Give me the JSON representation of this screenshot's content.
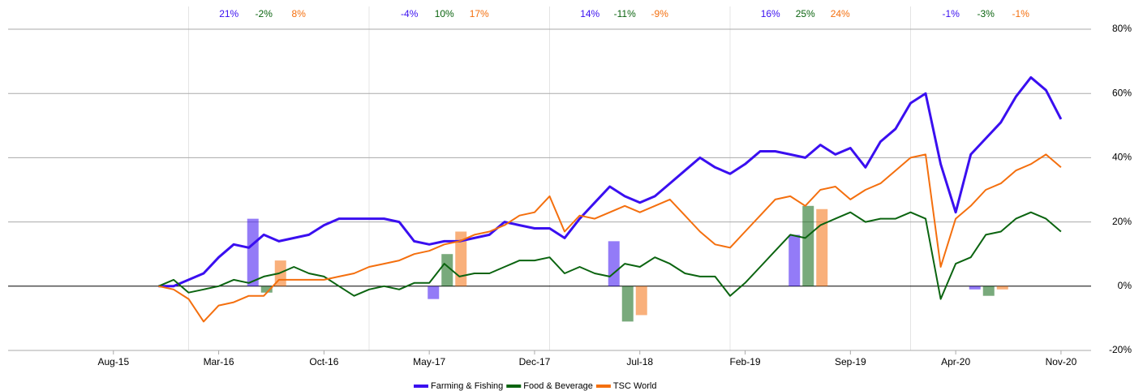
{
  "chart_data": {
    "type": "line",
    "x": [
      "2015-11",
      "2015-12",
      "2016-01",
      "2016-02",
      "2016-03",
      "2016-04",
      "2016-05",
      "2016-06",
      "2016-07",
      "2016-08",
      "2016-09",
      "2016-10",
      "2016-11",
      "2016-12",
      "2017-01",
      "2017-02",
      "2017-03",
      "2017-04",
      "2017-05",
      "2017-06",
      "2017-07",
      "2017-08",
      "2017-09",
      "2017-10",
      "2017-11",
      "2017-12",
      "2018-01",
      "2018-02",
      "2018-03",
      "2018-04",
      "2018-05",
      "2018-06",
      "2018-07",
      "2018-08",
      "2018-09",
      "2018-10",
      "2018-11",
      "2018-12",
      "2019-01",
      "2019-02",
      "2019-03",
      "2019-04",
      "2019-05",
      "2019-06",
      "2019-07",
      "2019-08",
      "2019-09",
      "2019-10",
      "2019-11",
      "2019-12",
      "2020-01",
      "2020-02",
      "2020-03",
      "2020-04",
      "2020-05",
      "2020-06",
      "2020-07",
      "2020-08",
      "2020-09",
      "2020-10",
      "2020-11"
    ],
    "xlim": [
      "2015-01",
      "2021-01"
    ],
    "xticks": [
      {
        "value": "2015-08",
        "label": "Aug-15"
      },
      {
        "value": "2016-03",
        "label": "Mar-16"
      },
      {
        "value": "2016-10",
        "label": "Oct-16"
      },
      {
        "value": "2017-05",
        "label": "May-17"
      },
      {
        "value": "2017-12",
        "label": "Dec-17"
      },
      {
        "value": "2018-07",
        "label": "Jul-18"
      },
      {
        "value": "2019-02",
        "label": "Feb-19"
      },
      {
        "value": "2019-09",
        "label": "Sep-19"
      },
      {
        "value": "2020-04",
        "label": "Apr-20"
      },
      {
        "value": "2020-11",
        "label": "Nov-20"
      }
    ],
    "xgrid": [
      "2016-01",
      "2017-01",
      "2018-01",
      "2019-01",
      "2020-01"
    ],
    "ylim": [
      -20,
      80
    ],
    "yticks": [
      {
        "value": -20,
        "label": "-20%"
      },
      {
        "value": 0,
        "label": "0%"
      },
      {
        "value": 20,
        "label": "20%"
      },
      {
        "value": 40,
        "label": "40%"
      },
      {
        "value": 60,
        "label": "60%"
      },
      {
        "value": 80,
        "label": "80%"
      }
    ],
    "grid": true,
    "legend": "bottom",
    "series": [
      {
        "name": "Farming & Fishing",
        "color": "#3a0ff0",
        "values": [
          0,
          0,
          2,
          4,
          9,
          13,
          12,
          16,
          14,
          15,
          16,
          19,
          21,
          21,
          21,
          21,
          20,
          14,
          13,
          14,
          14,
          15,
          16,
          20,
          19,
          18,
          18,
          15,
          21,
          26,
          31,
          28,
          26,
          28,
          32,
          36,
          40,
          37,
          35,
          38,
          42,
          42,
          41,
          40,
          44,
          41,
          43,
          37,
          45,
          49,
          57,
          60,
          38,
          23,
          41,
          46,
          51,
          59,
          65,
          61,
          52
        ],
        "annual_values": [
          21,
          -4,
          14,
          16,
          -1
        ],
        "annual_value_labels": [
          "21%",
          "-4%",
          "14%",
          "16%",
          "-1%"
        ]
      },
      {
        "name": "Food & Beverage",
        "color": "#0b6410",
        "values": [
          0,
          2,
          -2,
          -1,
          0,
          2,
          1,
          3,
          4,
          6,
          4,
          3,
          0,
          -3,
          -1,
          0,
          -1,
          1,
          1,
          7,
          3,
          4,
          4,
          6,
          8,
          8,
          9,
          4,
          6,
          4,
          3,
          7,
          6,
          9,
          7,
          4,
          3,
          3,
          -3,
          1,
          6,
          11,
          16,
          15,
          19,
          21,
          23,
          20,
          21,
          21,
          23,
          21,
          -4,
          7,
          9,
          16,
          17,
          21,
          23,
          21,
          17
        ],
        "annual_values": [
          -2,
          10,
          -11,
          25,
          -3
        ],
        "annual_value_labels": [
          "-2%",
          "10%",
          "-11%",
          "25%",
          "-3%"
        ]
      },
      {
        "name": "TSC  World",
        "color": "#f46f0e",
        "values": [
          0,
          -1,
          -4,
          -11,
          -6,
          -5,
          -3,
          -3,
          2,
          2,
          2,
          2,
          3,
          4,
          6,
          7,
          8,
          10,
          11,
          13,
          14,
          16,
          17,
          19,
          22,
          23,
          28,
          17,
          22,
          21,
          23,
          25,
          23,
          25,
          27,
          22,
          17,
          13,
          12,
          17,
          22,
          27,
          28,
          25,
          30,
          31,
          27,
          30,
          32,
          36,
          40,
          41,
          6,
          21,
          25,
          30,
          32,
          36,
          38,
          41,
          37
        ],
        "annual_values": [
          8,
          17,
          -9,
          24,
          -1
        ],
        "annual_value_labels": [
          "8%",
          "17%",
          "-9%",
          "24%",
          "-1%"
        ]
      }
    ]
  }
}
